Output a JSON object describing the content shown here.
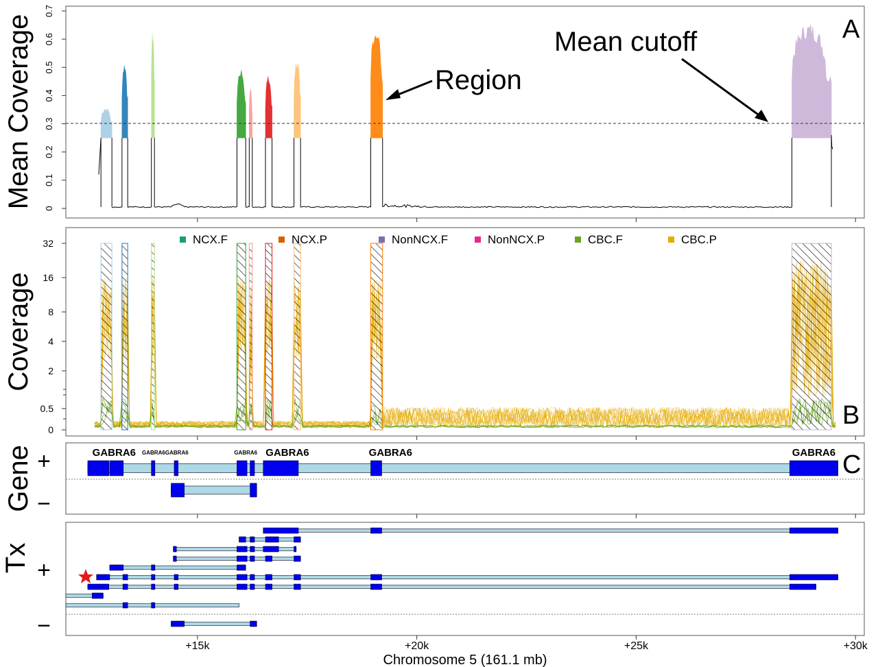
{
  "chart_data": [
    {
      "panel": "A",
      "type": "area",
      "ylabel": "Mean Coverage",
      "yticks": [
        0,
        0.1,
        0.2,
        0.3,
        0.4,
        0.5,
        0.6,
        0.7
      ],
      "ylim": [
        0,
        0.7
      ],
      "cutoff": 0.25,
      "annotations": [
        "Region",
        "Mean cutoff"
      ],
      "regions": [
        {
          "x": [
            12800,
            13050
          ],
          "peak": 0.36,
          "color": "#a6cee3"
        },
        {
          "x": [
            13280,
            13410
          ],
          "peak": 0.52,
          "color": "#1f78b4"
        },
        {
          "x": [
            13950,
            14020
          ],
          "peak": 0.63,
          "color": "#b2df8a"
        },
        {
          "x": [
            15900,
            16100
          ],
          "peak": 0.5,
          "color": "#33a02c"
        },
        {
          "x": [
            16180,
            16250
          ],
          "peak": 0.43,
          "color": "#fb9a99"
        },
        {
          "x": [
            16550,
            16700
          ],
          "peak": 0.47,
          "color": "#e31a1c"
        },
        {
          "x": [
            17200,
            17350
          ],
          "peak": 0.53,
          "color": "#fdbf6f"
        },
        {
          "x": [
            18950,
            19220
          ],
          "peak": 0.65,
          "color": "#ff7f00"
        },
        {
          "x": [
            28550,
            29450
          ],
          "peak": 0.66,
          "color": "#cab2d6"
        }
      ]
    },
    {
      "panel": "B",
      "type": "line",
      "ylabel": "Coverage",
      "yticks": [
        "0",
        "0.5",
        "2",
        "4",
        "8",
        "16",
        "32"
      ],
      "legend": [
        {
          "name": "NCX.F",
          "color": "#1b9e77"
        },
        {
          "name": "NCX.P",
          "color": "#d95f02"
        },
        {
          "name": "NonNCX.F",
          "color": "#7570b3"
        },
        {
          "name": "NonNCX.P",
          "color": "#e7298a"
        },
        {
          "name": "CBC.F",
          "color": "#66a61e"
        },
        {
          "name": "CBC.P",
          "color": "#e6ab02"
        }
      ],
      "legend_placement": "top"
    },
    {
      "panel": "C",
      "type": "gene-track",
      "ylabel": "Gene",
      "strand_labels": [
        "+",
        "−"
      ],
      "gene_labels": [
        {
          "text": "GABRA6",
          "at": 13100,
          "small": false
        },
        {
          "text": "GABRA6",
          "at": 14000,
          "small": true
        },
        {
          "text": "GABRA6",
          "at": 14530,
          "small": true
        },
        {
          "text": "GABRA6",
          "at": 16100,
          "small": true
        },
        {
          "text": "GABRA6",
          "at": 17050,
          "small": false
        },
        {
          "text": "GABRA6",
          "at": 19400,
          "small": false
        },
        {
          "text": "GABRA6",
          "at": 29050,
          "small": false
        }
      ]
    },
    {
      "panel": "Tx",
      "type": "transcript-track",
      "ylabel": "Tx",
      "strand_labels": [
        "+",
        "−"
      ]
    }
  ],
  "panel_letters": [
    "A",
    "B",
    "C"
  ],
  "xaxis": {
    "label": "Chromosome 5 (161.1 mb)",
    "ticks": [
      "+15k",
      "+20k",
      "+25k",
      "+30k"
    ],
    "tick_values": [
      15000,
      20000,
      25000,
      30000
    ],
    "xlim": [
      12000,
      30200
    ]
  },
  "colors": {
    "exon": "#0000ee",
    "intron": "#add8e6",
    "star": "#e31a1c",
    "cutoff_line": "#333333"
  }
}
